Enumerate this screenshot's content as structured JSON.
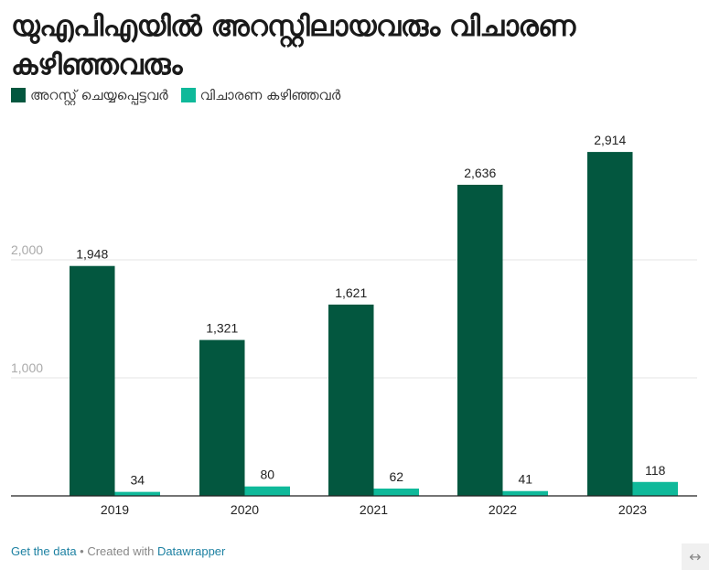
{
  "title": "യുഎപിഎയിൽ അറസ്റ്റിലായവരും വിചാരണ കഴിഞ്ഞവരും",
  "legend": [
    {
      "label": "അറസ്റ്റ് ചെയ്യപ്പെട്ടവർ",
      "color": "#03573f"
    },
    {
      "label": "വിചാരണ കഴിഞ്ഞവർ",
      "color": "#0fb99a"
    }
  ],
  "chart_data": {
    "type": "bar",
    "title": "യുഎപിഎയിൽ അറസ്റ്റിലായവരും വിചാരണ കഴിഞ്ഞവരും",
    "xlabel": "",
    "ylabel": "",
    "categories": [
      "2019",
      "2020",
      "2021",
      "2022",
      "2023"
    ],
    "series": [
      {
        "name": "അറസ്റ്റ് ചെയ്യപ്പെട്ടവർ",
        "color": "#03573f",
        "values": [
          1948,
          1321,
          1621,
          2636,
          2914
        ],
        "labels": [
          "1,948",
          "1,321",
          "1,621",
          "2,636",
          "2,914"
        ]
      },
      {
        "name": "വിചാരണ കഴിഞ്ഞവർ",
        "color": "#0fb99a",
        "values": [
          34,
          80,
          62,
          41,
          118
        ],
        "labels": [
          "34",
          "80",
          "62",
          "41",
          "118"
        ]
      }
    ],
    "yticks": [
      1000,
      2000
    ],
    "ytick_labels": [
      "1,000",
      "2,000"
    ],
    "ylim": [
      0,
      3000
    ],
    "grid": true,
    "legend_position": "top-left"
  },
  "footer": {
    "get_data": "Get the data",
    "separator": " • Created with ",
    "datawrapper": "Datawrapper"
  },
  "expand_icon": "↔"
}
